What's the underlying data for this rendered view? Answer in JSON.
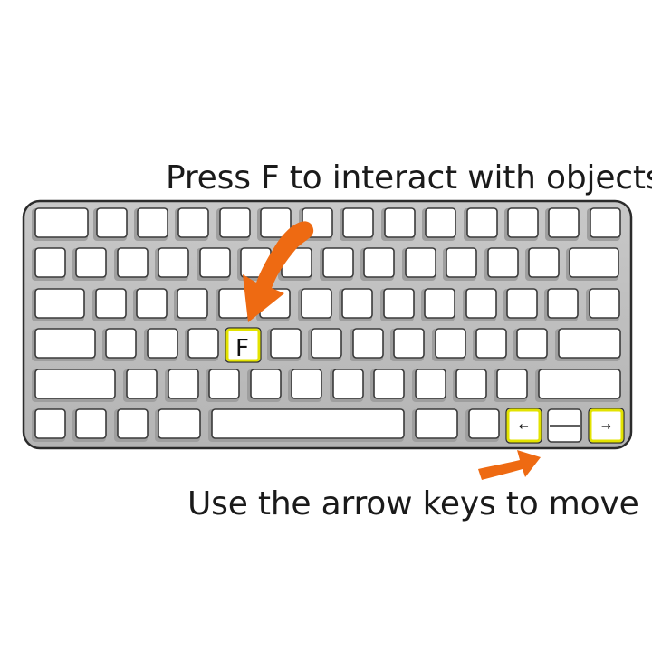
{
  "captions": {
    "interact": "Press F to interact with objects",
    "move": "Use the arrow keys to move"
  },
  "keys": {
    "f": "F",
    "left": "←",
    "right": "→"
  },
  "colors": {
    "highlight": "#e3e300",
    "arrow": "#ee6a12",
    "keyboard_body": "#bdbdbd",
    "key_face": "#ffffff"
  },
  "icons": {
    "interact_pointer": "curved-arrow-icon",
    "move_pointer": "curved-arrow-icon"
  }
}
